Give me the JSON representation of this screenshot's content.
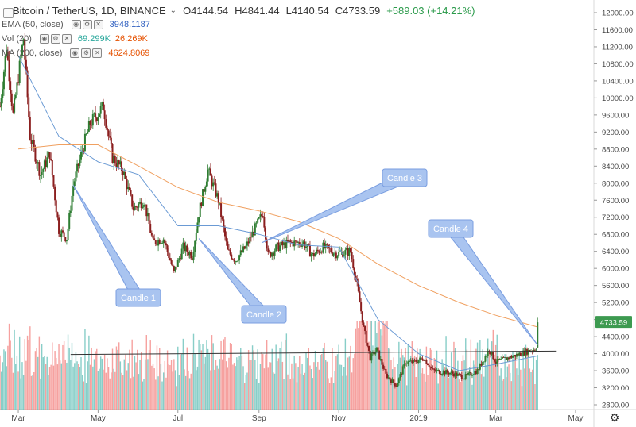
{
  "header": {
    "symbol": "Bitcoin / TetherUS, 1D, BINANCE",
    "open": "O4144.54",
    "high": "H4841.44",
    "low": "L4140.54",
    "close": "C4733.59",
    "change": "+589.03 (+14.21%)"
  },
  "indicators": [
    {
      "label": "EMA (50, close)",
      "values": [
        "3948.1187"
      ],
      "colors": [
        "#3060c0"
      ]
    },
    {
      "label": "Vol (20)",
      "values": [
        "69.299K",
        "26.269K"
      ],
      "colors": [
        "#26a69a",
        "#e65100"
      ]
    },
    {
      "label": "MA (200, close)",
      "values": [
        "4624.8069"
      ],
      "colors": [
        "#e65100"
      ]
    }
  ],
  "price_label": "4733.59",
  "colors": {
    "up": "#26a69a",
    "down": "#ef5350",
    "candle_up": "#2e7d32",
    "candle_down": "#8b1f1f",
    "ema": "#6a9ad4",
    "ma": "#f0a060",
    "callout_fill": "#a9c4f0",
    "callout_stroke": "#7a9ee0",
    "trendline": "#333333",
    "price_badge": "#3d9a50"
  },
  "annotations": [
    {
      "text": "Candle 1",
      "target_date": "2018-04-12",
      "target_price": 7950
    },
    {
      "text": "Candle 2",
      "target_date": "2018-07-17",
      "target_price": 6700
    },
    {
      "text": "Candle 3",
      "target_date": "2018-09-03",
      "target_price": 6600
    },
    {
      "text": "Candle 4",
      "target_date": "2019-04-02",
      "target_price": 4200
    }
  ],
  "chart_data": {
    "type": "candlestick",
    "x_start": "2018-02-15",
    "x_end": "2019-05-15",
    "x_tick_labels": [
      {
        "label": "Mar",
        "date": "2018-03-01"
      },
      {
        "label": "May",
        "date": "2018-05-01"
      },
      {
        "label": "Jul",
        "date": "2018-07-01"
      },
      {
        "label": "Sep",
        "date": "2018-09-01"
      },
      {
        "label": "Nov",
        "date": "2018-11-01"
      },
      {
        "label": "2019",
        "date": "2019-01-01"
      },
      {
        "label": "Mar",
        "date": "2019-03-01"
      },
      {
        "label": "May",
        "date": "2019-05-01"
      }
    ],
    "y_range": [
      2700,
      12150
    ],
    "y_ticks": [
      2800,
      3200,
      3600,
      4000,
      4400,
      4800,
      5200,
      5600,
      6000,
      6400,
      6800,
      7200,
      7600,
      8000,
      8400,
      8800,
      9200,
      9600,
      10000,
      10400,
      10800,
      11200,
      11600,
      12000
    ],
    "close_path": [
      {
        "date": "2018-02-15",
        "close": 9800
      },
      {
        "date": "2018-02-20",
        "close": 11200
      },
      {
        "date": "2018-02-25",
        "close": 9600
      },
      {
        "date": "2018-03-05",
        "close": 11400
      },
      {
        "date": "2018-03-10",
        "close": 9100
      },
      {
        "date": "2018-03-18",
        "close": 8200
      },
      {
        "date": "2018-03-25",
        "close": 8700
      },
      {
        "date": "2018-04-01",
        "close": 6900
      },
      {
        "date": "2018-04-07",
        "close": 6700
      },
      {
        "date": "2018-04-12",
        "close": 7950
      },
      {
        "date": "2018-04-20",
        "close": 8900
      },
      {
        "date": "2018-04-25",
        "close": 9400
      },
      {
        "date": "2018-05-05",
        "close": 9800
      },
      {
        "date": "2018-05-12",
        "close": 8600
      },
      {
        "date": "2018-05-20",
        "close": 8300
      },
      {
        "date": "2018-05-28",
        "close": 7400
      },
      {
        "date": "2018-06-05",
        "close": 7600
      },
      {
        "date": "2018-06-12",
        "close": 6600
      },
      {
        "date": "2018-06-20",
        "close": 6700
      },
      {
        "date": "2018-06-28",
        "close": 5900
      },
      {
        "date": "2018-07-05",
        "close": 6500
      },
      {
        "date": "2018-07-12",
        "close": 6300
      },
      {
        "date": "2018-07-17",
        "close": 7300
      },
      {
        "date": "2018-07-24",
        "close": 8300
      },
      {
        "date": "2018-08-01",
        "close": 7600
      },
      {
        "date": "2018-08-08",
        "close": 6400
      },
      {
        "date": "2018-08-14",
        "close": 6200
      },
      {
        "date": "2018-08-22",
        "close": 6500
      },
      {
        "date": "2018-08-30",
        "close": 7000
      },
      {
        "date": "2018-09-04",
        "close": 7300
      },
      {
        "date": "2018-09-08",
        "close": 6300
      },
      {
        "date": "2018-09-15",
        "close": 6500
      },
      {
        "date": "2018-09-25",
        "close": 6600
      },
      {
        "date": "2018-10-05",
        "close": 6600
      },
      {
        "date": "2018-10-12",
        "close": 6300
      },
      {
        "date": "2018-10-20",
        "close": 6500
      },
      {
        "date": "2018-10-30",
        "close": 6350
      },
      {
        "date": "2018-11-10",
        "close": 6400
      },
      {
        "date": "2018-11-15",
        "close": 5600
      },
      {
        "date": "2018-11-20",
        "close": 4600
      },
      {
        "date": "2018-11-25",
        "close": 3900
      },
      {
        "date": "2018-11-30",
        "close": 4100
      },
      {
        "date": "2018-12-07",
        "close": 3500
      },
      {
        "date": "2018-12-15",
        "close": 3250
      },
      {
        "date": "2018-12-22",
        "close": 3800
      },
      {
        "date": "2018-12-28",
        "close": 3800
      },
      {
        "date": "2019-01-05",
        "close": 3900
      },
      {
        "date": "2019-01-12",
        "close": 3600
      },
      {
        "date": "2019-01-25",
        "close": 3550
      },
      {
        "date": "2019-02-05",
        "close": 3450
      },
      {
        "date": "2019-02-15",
        "close": 3600
      },
      {
        "date": "2019-02-24",
        "close": 4100
      },
      {
        "date": "2019-03-01",
        "close": 3800
      },
      {
        "date": "2019-03-10",
        "close": 3900
      },
      {
        "date": "2019-03-20",
        "close": 4000
      },
      {
        "date": "2019-03-30",
        "close": 4100
      },
      {
        "date": "2019-04-01",
        "close": 4150
      },
      {
        "date": "2019-04-02",
        "close": 4734
      }
    ],
    "series": [
      {
        "name": "EMA (50, close)",
        "values": [
          {
            "date": "2018-03-01",
            "close": 11000
          },
          {
            "date": "2018-04-01",
            "close": 9100
          },
          {
            "date": "2018-05-01",
            "close": 8500
          },
          {
            "date": "2018-06-01",
            "close": 8200
          },
          {
            "date": "2018-07-01",
            "close": 7000
          },
          {
            "date": "2018-08-01",
            "close": 7000
          },
          {
            "date": "2018-09-01",
            "close": 6800
          },
          {
            "date": "2018-10-01",
            "close": 6550
          },
          {
            "date": "2018-11-01",
            "close": 6500
          },
          {
            "date": "2018-12-01",
            "close": 4800
          },
          {
            "date": "2019-01-01",
            "close": 4000
          },
          {
            "date": "2019-02-01",
            "close": 3600
          },
          {
            "date": "2019-03-01",
            "close": 3750
          },
          {
            "date": "2019-04-02",
            "close": 3948
          }
        ]
      },
      {
        "name": "MA (200, close)",
        "values": [
          {
            "date": "2018-03-01",
            "close": 8800
          },
          {
            "date": "2018-04-01",
            "close": 8900
          },
          {
            "date": "2018-05-01",
            "close": 8900
          },
          {
            "date": "2018-06-01",
            "close": 8400
          },
          {
            "date": "2018-07-01",
            "close": 7900
          },
          {
            "date": "2018-08-01",
            "close": 7550
          },
          {
            "date": "2018-09-01",
            "close": 7350
          },
          {
            "date": "2018-10-01",
            "close": 7100
          },
          {
            "date": "2018-11-01",
            "close": 6700
          },
          {
            "date": "2018-12-01",
            "close": 6100
          },
          {
            "date": "2019-01-01",
            "close": 5600
          },
          {
            "date": "2019-02-01",
            "close": 5200
          },
          {
            "date": "2019-03-01",
            "close": 4900
          },
          {
            "date": "2019-04-02",
            "close": 4625
          }
        ]
      }
    ],
    "trend_line": [
      {
        "date": "2018-04-10",
        "close": 3980
      },
      {
        "date": "2019-04-16",
        "close": 4060
      }
    ],
    "volume_max_k": 190
  }
}
